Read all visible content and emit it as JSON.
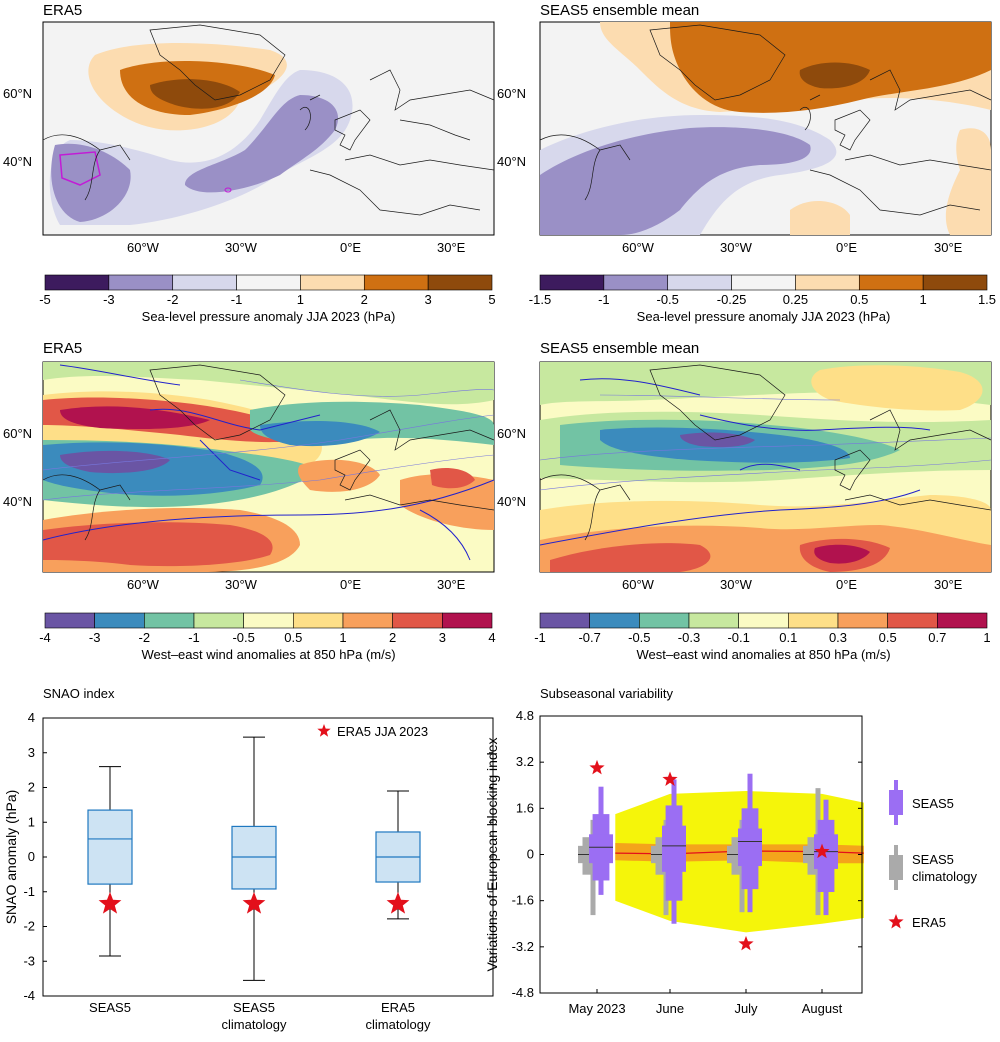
{
  "maps": [
    {
      "title": "ERA5",
      "lat_labels": [
        "60°N",
        "40°N"
      ],
      "lon_labels": [
        "60°W",
        "30°W",
        "0°E",
        "30°E"
      ]
    },
    {
      "title": "SEAS5 ensemble mean",
      "lat_labels": [
        "60°N",
        "40°N"
      ],
      "lon_labels": [
        "60°W",
        "30°W",
        "0°E",
        "30°E"
      ]
    },
    {
      "title": "ERA5",
      "lat_labels": [
        "60°N",
        "40°N"
      ],
      "lon_labels": [
        "60°W",
        "30°W",
        "0°E",
        "30°E"
      ]
    },
    {
      "title": "SEAS5 ensemble mean",
      "lat_labels": [
        "60°N",
        "40°N"
      ],
      "lon_labels": [
        "60°W",
        "30°W",
        "0°E",
        "30°E"
      ]
    }
  ],
  "colorbars": [
    {
      "ticks": [
        "-5",
        "-3",
        "-2",
        "-1",
        "1",
        "2",
        "3",
        "5"
      ],
      "colors": [
        "#3d1b5e",
        "#9a90c6",
        "#d7d8ec",
        "#f4f4f4",
        "#fcdcb0",
        "#cf7012",
        "#8e4a0c"
      ],
      "label": "Sea-level pressure anomaly JJA 2023 (hPa)"
    },
    {
      "ticks": [
        "-1.5",
        "-1",
        "-0.5",
        "-0.25",
        "0.25",
        "0.5",
        "1",
        "1.5"
      ],
      "colors": [
        "#3d1b5e",
        "#9a90c6",
        "#d7d8ec",
        "#f4f4f4",
        "#fcdcb0",
        "#cf7012",
        "#8e4a0c"
      ],
      "label": "Sea-level pressure anomaly JJA 2023 (hPa)"
    },
    {
      "ticks": [
        "-4",
        "-3",
        "-2",
        "-1",
        "-0.5",
        "0.5",
        "1",
        "2",
        "3",
        "4"
      ],
      "colors": [
        "#6a55a4",
        "#3b8bbd",
        "#72c3a4",
        "#c7e89f",
        "#fbfbc4",
        "#fedf88",
        "#f8a05c",
        "#e15747",
        "#b1124e"
      ],
      "label": "West–east wind anomalies at 850 hPa (m/s)"
    },
    {
      "ticks": [
        "-1",
        "-0.7",
        "-0.5",
        "-0.3",
        "-0.1",
        "0.1",
        "0.3",
        "0.5",
        "0.7",
        "1"
      ],
      "colors": [
        "#6a55a4",
        "#3b8bbd",
        "#72c3a4",
        "#c7e89f",
        "#fbfbc4",
        "#fedf88",
        "#f8a05c",
        "#e15747",
        "#b1124e"
      ],
      "label": "West–east wind anomalies at 850 hPa (m/s)"
    }
  ],
  "chart_data": [
    {
      "type": "box",
      "title": "SNAO index",
      "ylabel": "SNAO anomaly  (hPa)",
      "ylim": [
        -4,
        4
      ],
      "yticks": [
        "4",
        "3",
        "2",
        "1",
        "0",
        "-1",
        "-2",
        "-3",
        "-4"
      ],
      "categories": [
        "SEAS5",
        "SEAS5\nclimatology",
        "ERA5\nclimatology"
      ],
      "cat_lines": [
        [
          "SEAS5"
        ],
        [
          "SEAS5",
          "climatology"
        ],
        [
          "ERA5",
          "climatology"
        ]
      ],
      "boxes": [
        {
          "whisker_low": -2.85,
          "q1": -0.78,
          "median": 0.52,
          "q3": 1.35,
          "whisker_high": 2.6
        },
        {
          "whisker_low": -3.55,
          "q1": -0.92,
          "median": 0.0,
          "q3": 0.88,
          "whisker_high": 3.45
        },
        {
          "whisker_low": -1.78,
          "q1": -0.72,
          "median": 0.0,
          "q3": 0.72,
          "whisker_high": 1.9
        }
      ],
      "era5_value": -1.35,
      "legend": "ERA5 JJA 2023"
    },
    {
      "type": "box",
      "title": "Subseasonal variability",
      "ylabel": "Variations of European blocking index",
      "ylim": [
        -4.8,
        4.8
      ],
      "yticks": [
        "4.8",
        "3.2",
        "1.6",
        "0",
        "-1.6",
        "-3.2",
        "-4.8"
      ],
      "categories": [
        "May 2023",
        "June",
        "July",
        "August"
      ],
      "seas5": [
        {
          "min": -1.4,
          "p10": -0.9,
          "p25": -0.3,
          "median": 0.25,
          "p75": 0.7,
          "p90": 1.4,
          "max": 2.35
        },
        {
          "min": -2.4,
          "p10": -1.6,
          "p25": -0.6,
          "median": 0.3,
          "p75": 1.0,
          "p90": 1.7,
          "max": 2.6
        },
        {
          "min": -2.0,
          "p10": -1.2,
          "p25": -0.4,
          "median": 0.45,
          "p75": 0.9,
          "p90": 1.6,
          "max": 2.8
        },
        {
          "min": -2.1,
          "p10": -1.3,
          "p25": -0.5,
          "median": 0.1,
          "p75": 0.7,
          "p90": 1.2,
          "max": 1.9
        }
      ],
      "climatology": [
        {
          "min": -2.1,
          "p10": -0.7,
          "p25": -0.3,
          "median": 0.0,
          "p75": 0.3,
          "p90": 0.6,
          "max": 1.2
        },
        {
          "min": -2.1,
          "p10": -0.7,
          "p25": -0.3,
          "median": 0.0,
          "p75": 0.3,
          "p90": 0.6,
          "max": 1.2
        },
        {
          "min": -2.0,
          "p10": -0.7,
          "p25": -0.3,
          "median": 0.0,
          "p75": 0.3,
          "p90": 0.6,
          "max": 1.2
        },
        {
          "min": -2.1,
          "p10": -0.7,
          "p25": -0.3,
          "median": 0.0,
          "p75": 0.3,
          "p90": 0.6,
          "max": 2.3
        }
      ],
      "era5": [
        3.0,
        2.6,
        -3.1,
        0.1
      ],
      "yellow_band": {
        "x": [
          0.25,
          1.0,
          2.0,
          3.0,
          3.55
        ],
        "upper": [
          1.4,
          2.1,
          2.2,
          2.1,
          1.8
        ],
        "lower": [
          -1.6,
          -2.3,
          -2.7,
          -2.4,
          -2.2
        ]
      },
      "orange_band": {
        "x": [
          0.25,
          1.0,
          2.0,
          3.0,
          3.55
        ],
        "upper": [
          0.4,
          0.35,
          0.35,
          0.35,
          0.3
        ],
        "lower": [
          -0.2,
          -0.25,
          -0.2,
          -0.3,
          -0.3
        ]
      },
      "median_line": {
        "x": [
          0.25,
          1.0,
          2.0,
          3.0,
          3.55
        ],
        "y": [
          0.05,
          0.02,
          0.12,
          0.1,
          0.05
        ]
      },
      "legend": [
        "SEAS5",
        "SEAS5\nclimatology",
        "ERA5"
      ],
      "legend_lines": [
        [
          "SEAS5"
        ],
        [
          "SEAS5",
          "climatology"
        ],
        [
          "ERA5"
        ]
      ],
      "colors": {
        "seas5": "#9b6ef3",
        "climatology": "#aaaaaa",
        "era5": "#e3101b",
        "yellow": "#f5f50a",
        "orange": "#f4a41b"
      }
    }
  ]
}
